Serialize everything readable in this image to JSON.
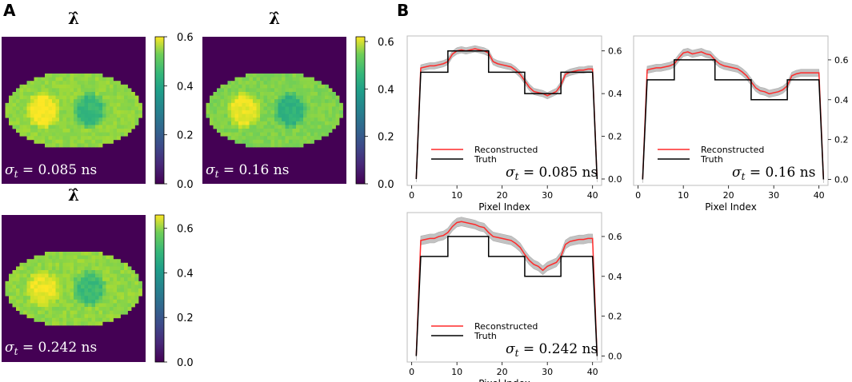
{
  "panel_labels": {
    "a": "A",
    "b": "B"
  },
  "chart_data": [
    {
      "type": "heatmap",
      "id": "map1",
      "title": "λ̂",
      "annotation": {
        "symbol": "σ",
        "sub": "t",
        "text": " = 0.085 ns"
      },
      "colorbar_ticks": [
        "0.0",
        "0.2",
        "0.4",
        "0.6"
      ],
      "vmin": 0.0,
      "vmax": 0.6,
      "grid": 40,
      "background_value": 0.0,
      "base_value": 0.5,
      "hot_value": 0.6,
      "cold_value": 0.4,
      "noise": 0.02
    },
    {
      "type": "heatmap",
      "id": "map2",
      "title": "λ̂",
      "annotation": {
        "symbol": "σ",
        "sub": "t",
        "text": " = 0.16 ns"
      },
      "colorbar_ticks": [
        "0.0",
        "0.2",
        "0.4",
        "0.6"
      ],
      "vmin": 0.0,
      "vmax": 0.62,
      "grid": 40,
      "background_value": 0.0,
      "base_value": 0.5,
      "hot_value": 0.6,
      "cold_value": 0.4,
      "noise": 0.02
    },
    {
      "type": "heatmap",
      "id": "map3",
      "title": "λ̂",
      "annotation": {
        "symbol": "σ",
        "sub": "t",
        "text": " = 0.242 ns"
      },
      "colorbar_ticks": [
        "0.0",
        "0.2",
        "0.4",
        "0.6"
      ],
      "vmin": 0.0,
      "vmax": 0.66,
      "grid": 40,
      "background_value": 0.0,
      "base_value": 0.55,
      "hot_value": 0.64,
      "cold_value": 0.45,
      "noise": 0.025
    },
    {
      "type": "line",
      "id": "plot1",
      "xlabel": "Pixel Index",
      "xticks": [
        0,
        10,
        20,
        30,
        40
      ],
      "yticks": [
        0.0,
        0.2,
        0.4,
        0.6
      ],
      "xlim": [
        -1,
        42
      ],
      "ylim": [
        -0.03,
        0.67
      ],
      "legend": [
        "Reconstructed",
        "Truth"
      ],
      "annotation": {
        "symbol": "σ",
        "sub": "t",
        "text": " = 0.085 ns"
      },
      "series": [
        {
          "name": "Reconstructed",
          "color": "#ff2a2a",
          "x": [
            1,
            2,
            3,
            4,
            5,
            6,
            7,
            8,
            9,
            10,
            11,
            12,
            13,
            14,
            15,
            16,
            17,
            18,
            19,
            20,
            21,
            22,
            23,
            24,
            25,
            26,
            27,
            28,
            29,
            30,
            31,
            32,
            33,
            34,
            35,
            36,
            37,
            38,
            39,
            40,
            41
          ],
          "values": [
            0.0,
            0.52,
            0.525,
            0.53,
            0.53,
            0.535,
            0.54,
            0.55,
            0.585,
            0.6,
            0.605,
            0.6,
            0.605,
            0.61,
            0.605,
            0.6,
            0.59,
            0.55,
            0.54,
            0.535,
            0.53,
            0.525,
            0.51,
            0.49,
            0.46,
            0.43,
            0.41,
            0.405,
            0.4,
            0.39,
            0.4,
            0.41,
            0.44,
            0.49,
            0.5,
            0.505,
            0.51,
            0.51,
            0.515,
            0.515,
            0.0
          ],
          "band": 0.015
        },
        {
          "name": "Truth",
          "color": "#000000",
          "x": [
            1,
            2,
            8,
            8,
            17,
            17,
            25,
            25,
            33,
            33,
            40,
            41
          ],
          "values": [
            0.0,
            0.5,
            0.5,
            0.6,
            0.6,
            0.5,
            0.5,
            0.4,
            0.4,
            0.5,
            0.5,
            0.0
          ]
        }
      ]
    },
    {
      "type": "line",
      "id": "plot2",
      "xlabel": "Pixel Index",
      "xticks": [
        0,
        10,
        20,
        30,
        40
      ],
      "yticks": [
        0.0,
        0.2,
        0.4,
        0.6
      ],
      "xlim": [
        -1,
        42
      ],
      "ylim": [
        -0.03,
        0.72
      ],
      "legend": [
        "Reconstructed",
        "Truth"
      ],
      "annotation": {
        "symbol": "σ",
        "sub": "t",
        "text": " = 0.16 ns"
      },
      "series": [
        {
          "name": "Reconstructed",
          "color": "#ff2a2a",
          "x": [
            1,
            2,
            3,
            4,
            5,
            6,
            7,
            8,
            9,
            10,
            11,
            12,
            13,
            14,
            15,
            16,
            17,
            18,
            19,
            20,
            21,
            22,
            23,
            24,
            25,
            26,
            27,
            28,
            29,
            30,
            31,
            32,
            33,
            34,
            35,
            36,
            37,
            38,
            39,
            40,
            41
          ],
          "values": [
            0.0,
            0.55,
            0.555,
            0.56,
            0.56,
            0.565,
            0.57,
            0.58,
            0.61,
            0.635,
            0.64,
            0.63,
            0.635,
            0.64,
            0.63,
            0.625,
            0.6,
            0.58,
            0.57,
            0.565,
            0.56,
            0.555,
            0.54,
            0.52,
            0.49,
            0.46,
            0.445,
            0.44,
            0.43,
            0.435,
            0.44,
            0.45,
            0.47,
            0.52,
            0.53,
            0.535,
            0.535,
            0.535,
            0.535,
            0.535,
            0.0
          ],
          "band": 0.018
        },
        {
          "name": "Truth",
          "color": "#000000",
          "x": [
            1,
            2,
            8,
            8,
            17,
            17,
            25,
            25,
            33,
            33,
            40,
            41
          ],
          "values": [
            0.0,
            0.5,
            0.5,
            0.6,
            0.6,
            0.5,
            0.5,
            0.4,
            0.4,
            0.5,
            0.5,
            0.0
          ]
        }
      ]
    },
    {
      "type": "line",
      "id": "plot3",
      "xlabel": "Pixel Index",
      "xticks": [
        0,
        10,
        20,
        30,
        40
      ],
      "yticks": [
        0.0,
        0.2,
        0.4,
        0.6
      ],
      "xlim": [
        -1,
        42
      ],
      "ylim": [
        -0.03,
        0.72
      ],
      "legend": [
        "Reconstructed",
        "Truth"
      ],
      "annotation": {
        "symbol": "σ",
        "sub": "t",
        "text": " = 0.242 ns"
      },
      "series": [
        {
          "name": "Reconstructed",
          "color": "#ff2a2a",
          "x": [
            1,
            2,
            3,
            4,
            5,
            6,
            7,
            8,
            9,
            10,
            11,
            12,
            13,
            14,
            15,
            16,
            17,
            18,
            19,
            20,
            21,
            22,
            23,
            24,
            25,
            26,
            27,
            28,
            29,
            30,
            31,
            32,
            33,
            34,
            35,
            36,
            37,
            38,
            39,
            40,
            41
          ],
          "values": [
            0.0,
            0.58,
            0.585,
            0.59,
            0.59,
            0.6,
            0.605,
            0.62,
            0.65,
            0.67,
            0.675,
            0.67,
            0.665,
            0.66,
            0.65,
            0.645,
            0.62,
            0.6,
            0.595,
            0.59,
            0.585,
            0.58,
            0.565,
            0.545,
            0.51,
            0.48,
            0.46,
            0.45,
            0.43,
            0.45,
            0.46,
            0.47,
            0.5,
            0.56,
            0.575,
            0.58,
            0.585,
            0.585,
            0.59,
            0.59,
            0.0
          ],
          "band": 0.022
        },
        {
          "name": "Truth",
          "color": "#000000",
          "x": [
            1,
            2,
            8,
            8,
            17,
            17,
            25,
            25,
            33,
            33,
            40,
            41
          ],
          "values": [
            0.0,
            0.5,
            0.5,
            0.6,
            0.6,
            0.5,
            0.5,
            0.4,
            0.4,
            0.5,
            0.5,
            0.0
          ]
        }
      ]
    }
  ]
}
